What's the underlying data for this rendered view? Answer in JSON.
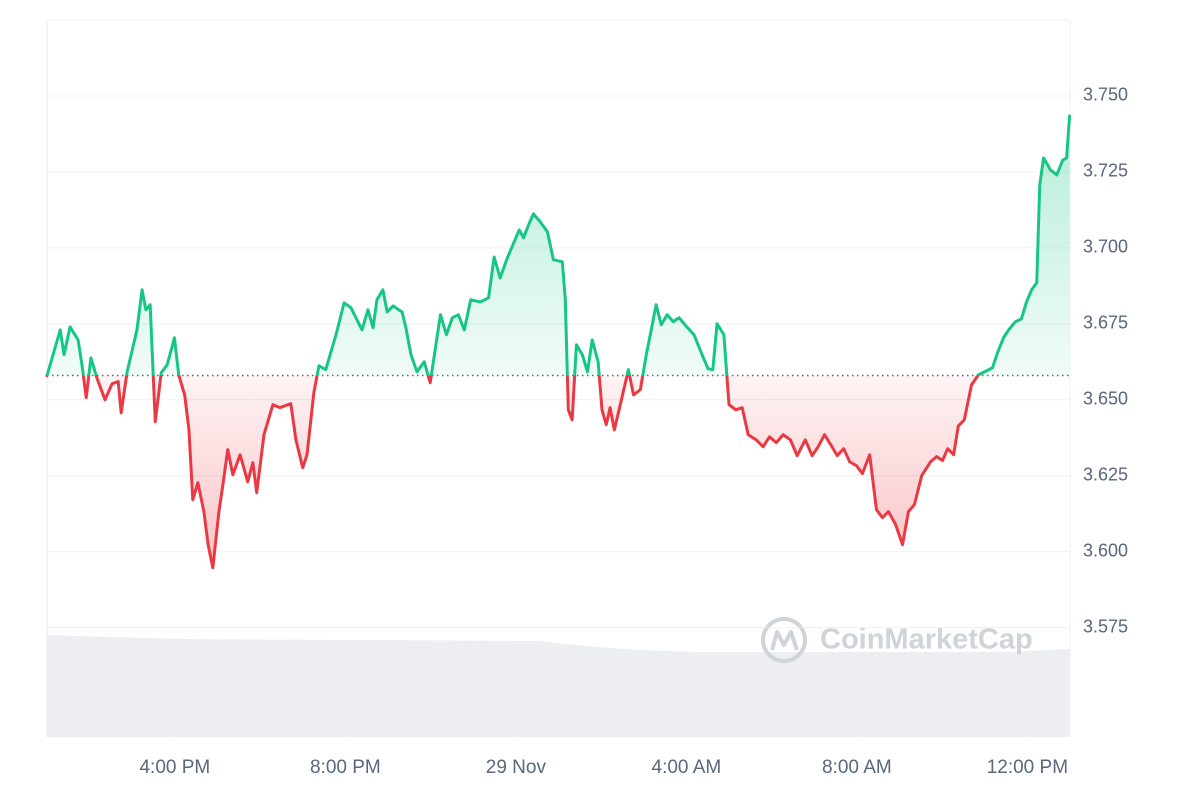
{
  "chart_data": {
    "type": "line",
    "watermark": "CoinMarketCap",
    "baseline": 3.658,
    "up_color": "#16c784",
    "down_color": "#ea3943",
    "grid": true,
    "xlim": [
      13,
      37
    ],
    "xticks": [
      {
        "value": 16,
        "label": "4:00 PM"
      },
      {
        "value": 20,
        "label": "8:00 PM"
      },
      {
        "value": 24,
        "label": "29 Nov"
      },
      {
        "value": 28,
        "label": "4:00 AM"
      },
      {
        "value": 32,
        "label": "8:00 AM"
      },
      {
        "value": 36,
        "label": "12:00 PM"
      }
    ],
    "ylim": [
      3.539,
      3.775
    ],
    "yticks": [
      3.575,
      {
        "value": 3.6,
        "label": "3.600"
      },
      3.625,
      {
        "value": 3.65,
        "label": "3.650"
      },
      3.675,
      {
        "value": 3.7,
        "label": "3.700"
      },
      3.725,
      {
        "value": 3.75,
        "label": "3.750"
      }
    ],
    "x": [
      13.0,
      13.31,
      13.4,
      13.54,
      13.73,
      13.82,
      13.92,
      14.03,
      14.17,
      14.36,
      14.53,
      14.67,
      14.74,
      14.88,
      15.11,
      15.23,
      15.32,
      15.42,
      15.54,
      15.68,
      15.82,
      15.99,
      16.09,
      16.23,
      16.33,
      16.42,
      16.54,
      16.68,
      16.78,
      16.89,
      17.03,
      17.15,
      17.24,
      17.36,
      17.53,
      17.71,
      17.83,
      17.92,
      18.09,
      18.3,
      18.46,
      18.72,
      18.84,
      19.0,
      19.1,
      19.26,
      19.38,
      19.54,
      19.78,
      19.97,
      20.13,
      20.39,
      20.53,
      20.65,
      20.74,
      20.88,
      20.98,
      21.12,
      21.33,
      21.42,
      21.54,
      21.68,
      21.85,
      21.99,
      22.23,
      22.37,
      22.51,
      22.65,
      22.79,
      22.94,
      23.17,
      23.36,
      23.49,
      23.63,
      23.8,
      23.96,
      24.08,
      24.18,
      24.27,
      24.41,
      24.57,
      24.74,
      24.88,
      25.09,
      25.16,
      25.23,
      25.32,
      25.42,
      25.56,
      25.68,
      25.79,
      25.93,
      26.02,
      26.12,
      26.21,
      26.31,
      26.45,
      26.64,
      26.76,
      26.92,
      27.06,
      27.2,
      27.29,
      27.41,
      27.55,
      27.69,
      27.83,
      27.99,
      28.18,
      28.37,
      28.51,
      28.62,
      28.72,
      28.88,
      29.0,
      29.16,
      29.31,
      29.45,
      29.64,
      29.8,
      29.95,
      30.11,
      30.27,
      30.44,
      30.6,
      30.79,
      30.95,
      31.09,
      31.24,
      31.4,
      31.54,
      31.69,
      31.83,
      31.99,
      32.13,
      32.3,
      32.46,
      32.6,
      32.74,
      32.91,
      33.07,
      33.21,
      33.35,
      33.52,
      33.73,
      33.87,
      34.01,
      34.13,
      34.27,
      34.38,
      34.52,
      34.69,
      34.85,
      35.04,
      35.18,
      35.3,
      35.44,
      35.56,
      35.72,
      35.86,
      35.98,
      36.1,
      36.22,
      36.29,
      36.38,
      36.54,
      36.69,
      36.83,
      36.92,
      36.99
    ],
    "values": [
      3.6579,
      3.673,
      3.6648,
      3.674,
      3.6697,
      3.6615,
      3.6507,
      3.6638,
      3.6572,
      3.65,
      3.6553,
      3.656,
      3.6457,
      3.6592,
      3.673,
      3.6862,
      3.6796,
      3.6813,
      3.6428,
      3.6589,
      3.6615,
      3.6704,
      3.6582,
      3.6516,
      3.6401,
      3.6171,
      3.6227,
      3.6132,
      3.6023,
      3.5947,
      3.6128,
      3.6243,
      3.6336,
      3.6253,
      3.6319,
      3.623,
      3.6293,
      3.6194,
      3.6385,
      3.6484,
      3.6474,
      3.6487,
      3.6368,
      3.6276,
      3.6319,
      3.6523,
      3.6612,
      3.6599,
      3.6714,
      3.6819,
      3.6803,
      3.673,
      3.6796,
      3.6737,
      3.6829,
      3.6862,
      3.6789,
      3.6809,
      3.6789,
      3.6737,
      3.6648,
      3.6592,
      3.6625,
      3.6556,
      3.678,
      3.6714,
      3.677,
      3.678,
      3.673,
      3.6829,
      3.6822,
      3.6836,
      3.697,
      3.6901,
      3.6967,
      3.702,
      3.7059,
      3.7033,
      3.7066,
      3.7112,
      3.7086,
      3.7053,
      3.6961,
      3.6954,
      3.6829,
      3.6467,
      3.6434,
      3.6681,
      3.6648,
      3.6592,
      3.6697,
      3.6625,
      3.6467,
      3.6418,
      3.6474,
      3.6401,
      3.6484,
      3.6599,
      3.6516,
      3.6533,
      3.6648,
      3.6747,
      3.6813,
      3.6747,
      3.678,
      3.6757,
      3.677,
      3.6743,
      3.6714,
      3.6648,
      3.6602,
      3.6599,
      3.675,
      3.6714,
      3.6484,
      3.6467,
      3.6474,
      3.6385,
      3.6368,
      3.6345,
      3.6378,
      3.6359,
      3.6385,
      3.6368,
      3.6316,
      3.6368,
      3.6316,
      3.6345,
      3.6385,
      3.6349,
      3.6316,
      3.6339,
      3.6296,
      3.6283,
      3.6257,
      3.6319,
      3.6138,
      3.6112,
      3.6132,
      3.6089,
      3.6023,
      3.6132,
      3.6155,
      3.625,
      3.6296,
      3.6313,
      3.63,
      3.6339,
      3.6319,
      3.6414,
      3.6434,
      3.6549,
      3.6582,
      3.6595,
      3.6605,
      3.6655,
      3.6704,
      3.673,
      3.6757,
      3.6766,
      3.6822,
      3.6862,
      3.6885,
      3.7207,
      3.7296,
      3.7257,
      3.724,
      3.7289,
      3.7296,
      3.7434
    ],
    "volume": {
      "color": "#eceef2",
      "x": [
        13.0,
        16.1,
        20.1,
        24.5,
        25.9,
        26.9,
        28.3,
        32.0,
        35.5,
        37.0
      ],
      "values": [
        102,
        98,
        97,
        96,
        90,
        87,
        85,
        85,
        85,
        88
      ]
    }
  }
}
